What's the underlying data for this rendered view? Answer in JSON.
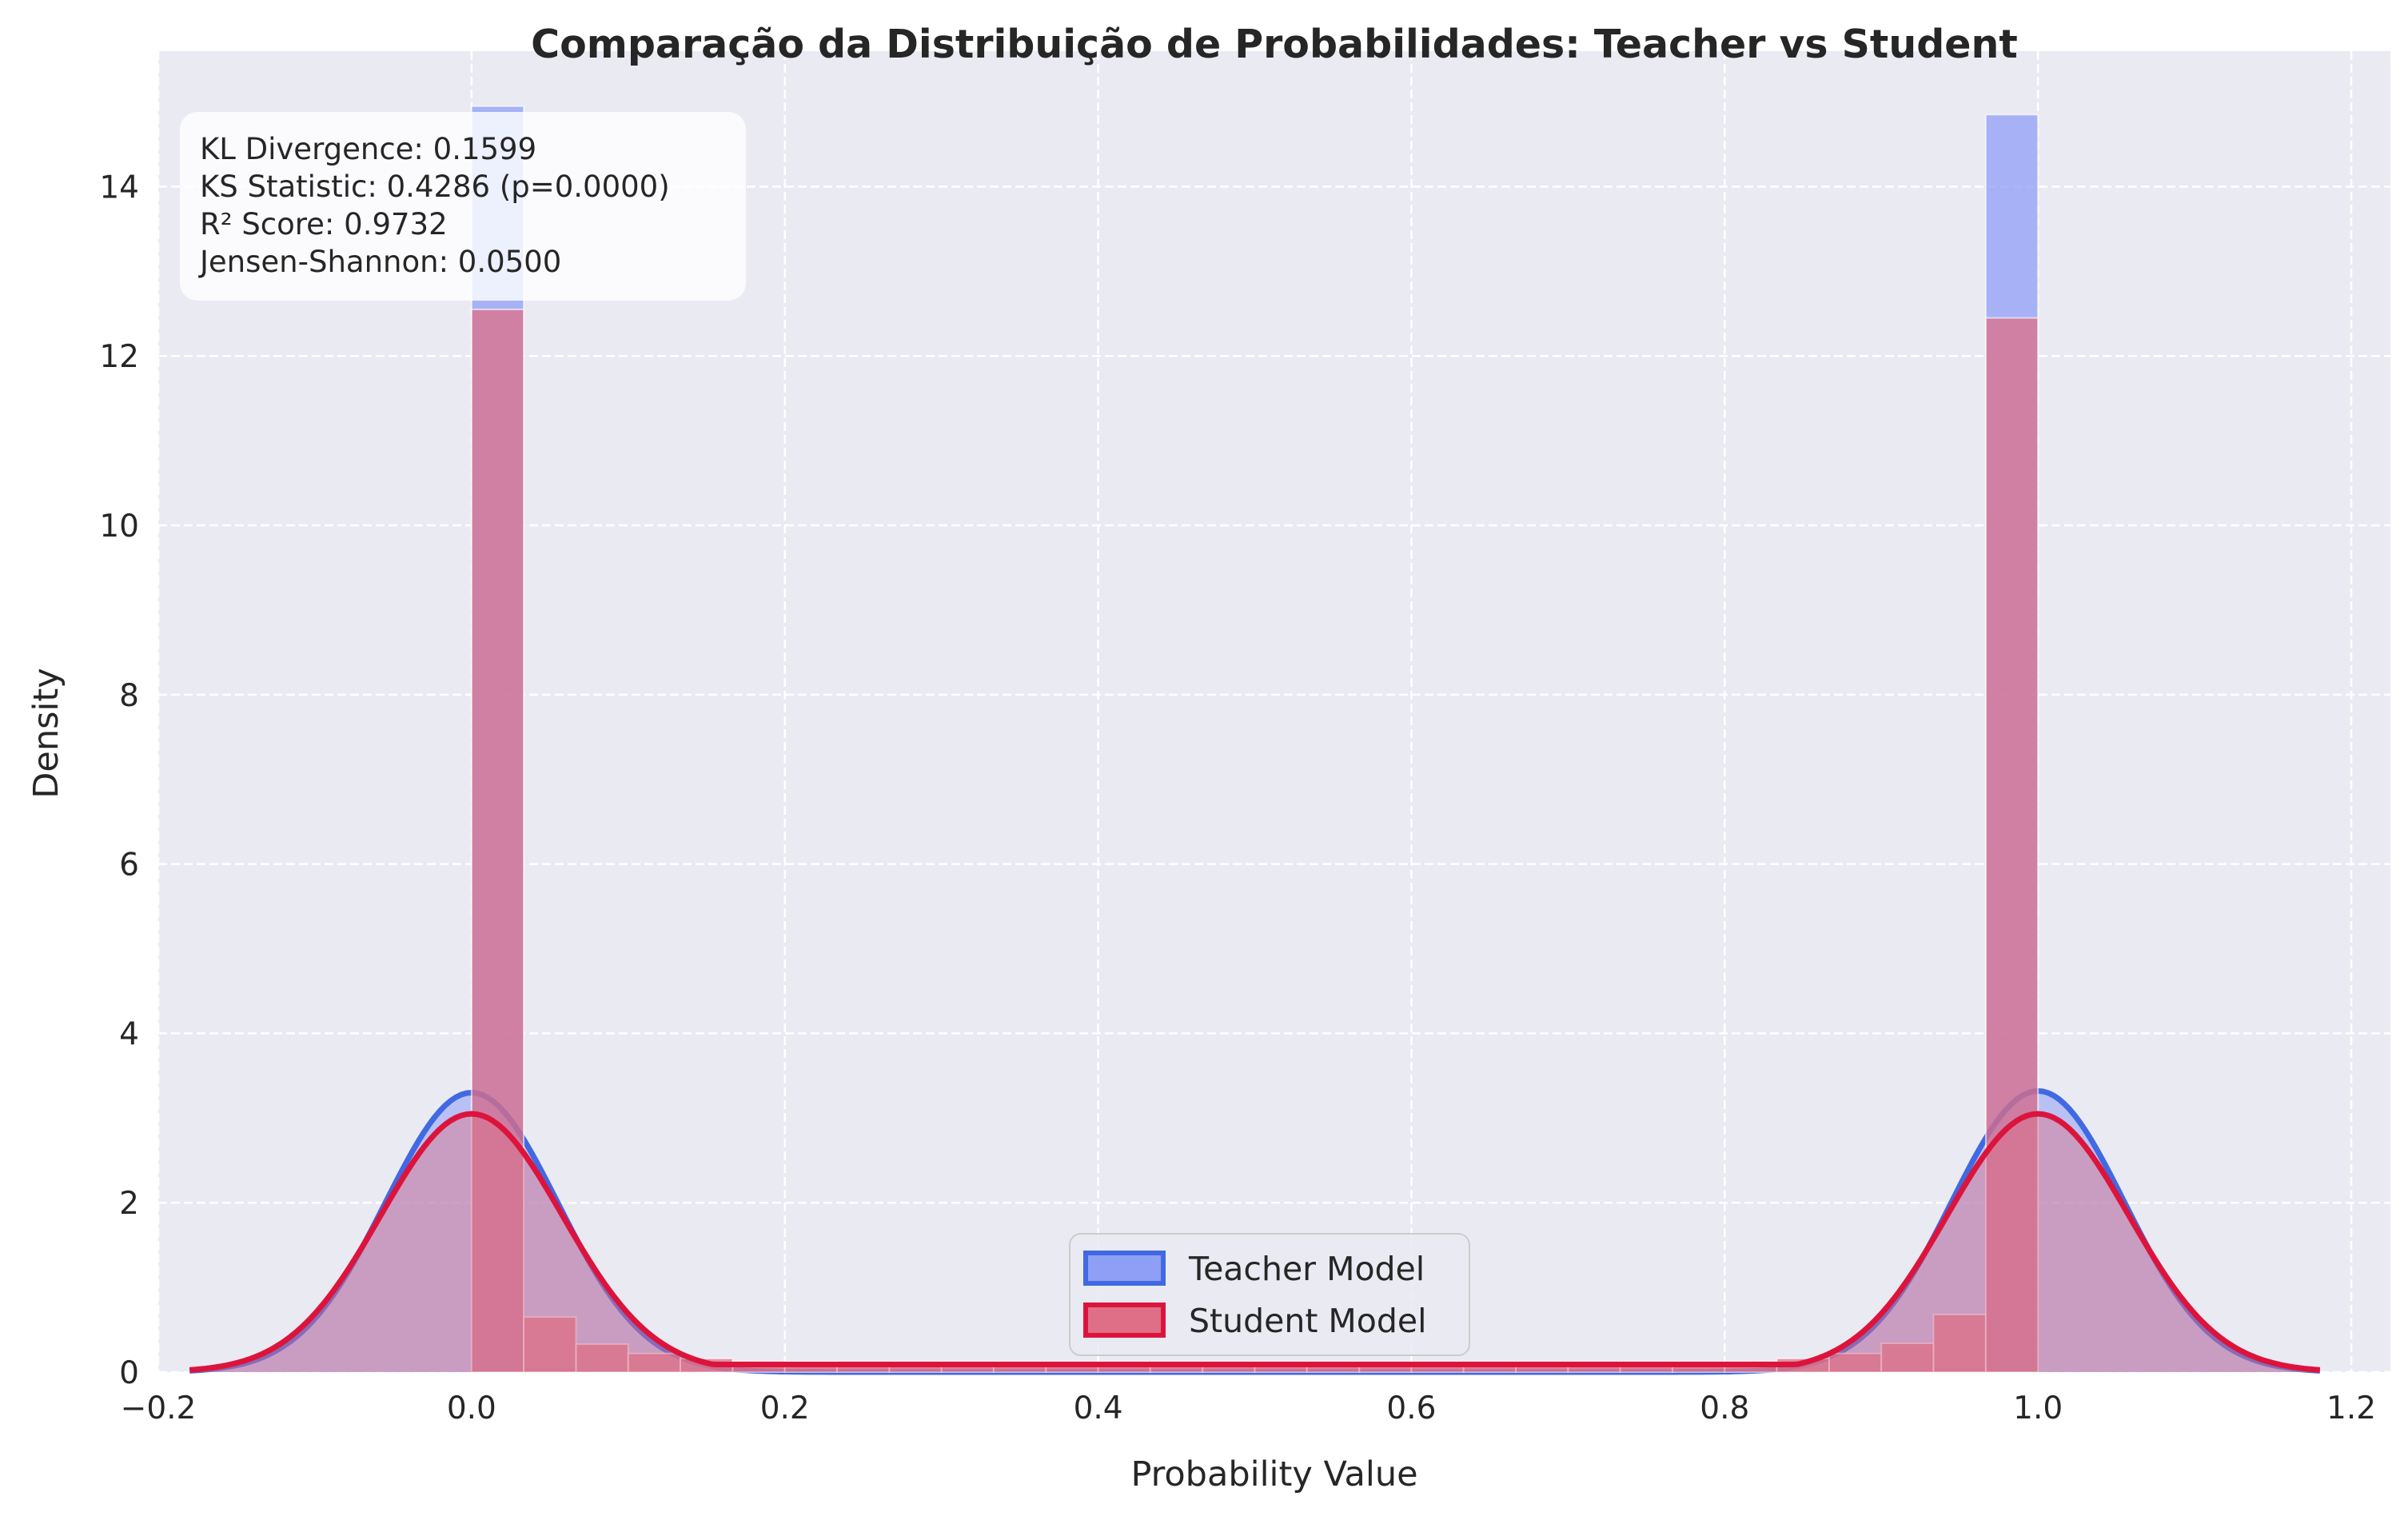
{
  "chart_data": {
    "type": "histogram-kde",
    "title": "Comparação da Distribuição de Probabilidades: Teacher vs Student",
    "xlabel": "Probability Value",
    "ylabel": "Density",
    "xlim": [
      -0.2,
      1.225
    ],
    "ylim": [
      0,
      15.6
    ],
    "xticks": [
      -0.2,
      0.0,
      0.2,
      0.4,
      0.6,
      0.8,
      1.0,
      1.2
    ],
    "xtick_labels": [
      "−0.2",
      "0.0",
      "0.2",
      "0.4",
      "0.6",
      "0.8",
      "1.0",
      "1.2"
    ],
    "yticks": [
      0,
      2,
      4,
      6,
      8,
      10,
      12,
      14
    ],
    "ytick_labels": [
      "0",
      "2",
      "4",
      "6",
      "8",
      "10",
      "12",
      "14"
    ],
    "grid": true,
    "legend_position": "lower-center",
    "bin_edges": [
      0.0,
      0.0333,
      0.0667,
      0.1,
      0.1333,
      0.1667,
      0.2,
      0.2333,
      0.2667,
      0.3,
      0.3333,
      0.3667,
      0.4,
      0.4333,
      0.4667,
      0.5,
      0.5333,
      0.5667,
      0.6,
      0.6333,
      0.6667,
      0.7,
      0.7333,
      0.7667,
      0.8,
      0.8333,
      0.8667,
      0.9,
      0.9333,
      0.9667,
      1.0
    ],
    "series": [
      {
        "name": "Teacher Model",
        "color": "#4169e1",
        "fill": "#8f9ff5",
        "hist": [
          14.95,
          0.05,
          0.03,
          0.02,
          0.02,
          0.02,
          0.02,
          0.02,
          0.02,
          0.02,
          0.02,
          0.02,
          0.02,
          0.02,
          0.02,
          0.02,
          0.02,
          0.02,
          0.02,
          0.02,
          0.02,
          0.02,
          0.02,
          0.02,
          0.02,
          0.02,
          0.03,
          0.03,
          0.05,
          14.85
        ],
        "kde": {
          "peak1": 3.3,
          "peak2": 3.32,
          "sigma": 0.055,
          "baseline": 0.0
        }
      },
      {
        "name": "Student Model",
        "color": "#dc143c",
        "fill": "#de6f86",
        "hist": [
          12.55,
          0.65,
          0.33,
          0.22,
          0.16,
          0.13,
          0.12,
          0.11,
          0.1,
          0.09,
          0.09,
          0.08,
          0.08,
          0.08,
          0.08,
          0.08,
          0.08,
          0.08,
          0.08,
          0.09,
          0.09,
          0.1,
          0.1,
          0.11,
          0.13,
          0.16,
          0.22,
          0.34,
          0.68,
          12.45
        ],
        "kde": {
          "peak1": 3.05,
          "peak2": 3.05,
          "sigma": 0.058,
          "baseline": 0.09
        }
      }
    ],
    "stats_lines": [
      "KL Divergence: 0.1599",
      "KS Statistic: 0.4286 (p=0.0000)",
      "R² Score: 0.9732",
      "Jensen-Shannon: 0.0500"
    ]
  },
  "colors": {
    "plot_bg": "#eaeaf2",
    "grid": "#ffffff",
    "text": "#262626"
  }
}
